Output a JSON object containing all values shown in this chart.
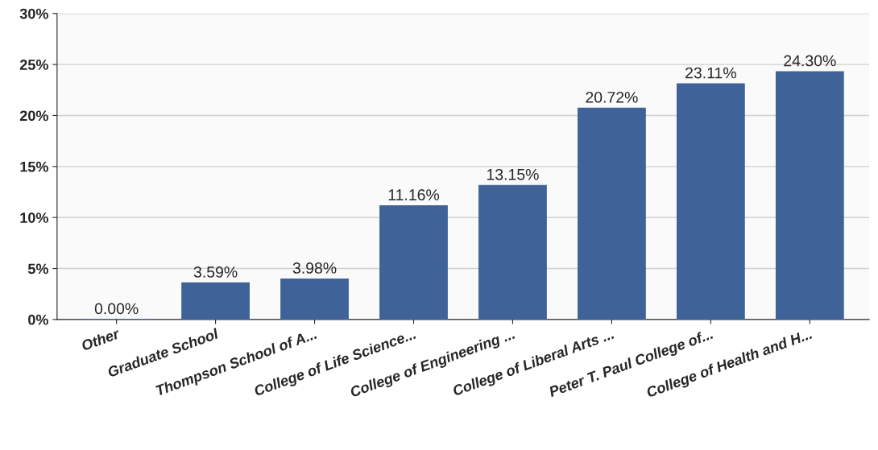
{
  "chart_data": {
    "type": "bar",
    "categories": [
      "Other",
      "Graduate School",
      "Thompson School of A...",
      "College of Life Science...",
      "College of Engineering ...",
      "College of Liberal Arts ...",
      "Peter T. Paul College of...",
      "College of Health and H..."
    ],
    "values": [
      0.0,
      3.59,
      3.98,
      11.16,
      13.15,
      20.72,
      23.11,
      24.3
    ],
    "value_labels": [
      "0.00%",
      "3.59%",
      "3.98%",
      "11.16%",
      "13.15%",
      "20.72%",
      "23.11%",
      "24.30%"
    ],
    "color": "#3f6398",
    "ylim": [
      0,
      30
    ],
    "yticks": [
      {
        "value": 0,
        "label": "0%"
      },
      {
        "value": 5,
        "label": "5%"
      },
      {
        "value": 10,
        "label": "10%"
      },
      {
        "value": 15,
        "label": "15%"
      },
      {
        "value": 20,
        "label": "20%"
      },
      {
        "value": 25,
        "label": "25%"
      },
      {
        "value": 30,
        "label": "30%"
      }
    ],
    "grid": "y"
  }
}
